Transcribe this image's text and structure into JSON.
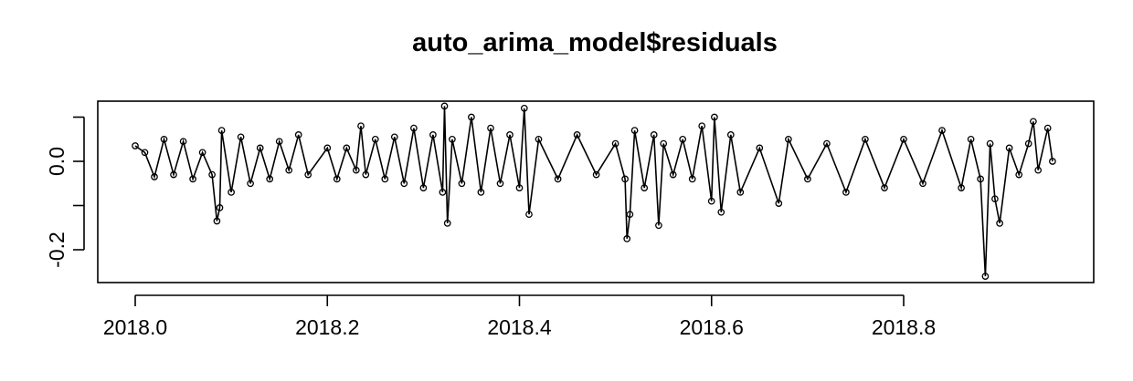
{
  "chart_data": {
    "type": "line",
    "title": "auto_arima_model$residuals",
    "xlabel": "",
    "ylabel": "",
    "xlim": [
      2018.0,
      2018.96
    ],
    "ylim": [
      -0.27,
      0.13
    ],
    "x_ticks": [
      2018.0,
      2018.2,
      2018.4,
      2018.6,
      2018.8
    ],
    "x_tick_labels": [
      "2018.0",
      "2018.2",
      "2018.4",
      "2018.6",
      "2018.8"
    ],
    "y_ticks": [
      -0.2,
      -0.1,
      0.0,
      0.1
    ],
    "y_tick_labels": [
      "-0.2",
      "",
      "0.0",
      ""
    ],
    "grid": false,
    "markers": "open-circle",
    "series": [
      {
        "color": "#000000",
        "points": [
          [
            2018.0,
            0.035
          ],
          [
            2018.01,
            0.02
          ],
          [
            2018.02,
            -0.035
          ],
          [
            2018.03,
            0.05
          ],
          [
            2018.04,
            -0.03
          ],
          [
            2018.05,
            0.045
          ],
          [
            2018.06,
            -0.04
          ],
          [
            2018.07,
            0.02
          ],
          [
            2018.08,
            -0.03
          ],
          [
            2018.085,
            -0.135
          ],
          [
            2018.088,
            -0.105
          ],
          [
            2018.09,
            0.07
          ],
          [
            2018.1,
            -0.07
          ],
          [
            2018.11,
            0.055
          ],
          [
            2018.12,
            -0.05
          ],
          [
            2018.13,
            0.03
          ],
          [
            2018.14,
            -0.04
          ],
          [
            2018.15,
            0.045
          ],
          [
            2018.16,
            -0.02
          ],
          [
            2018.17,
            0.06
          ],
          [
            2018.18,
            -0.03
          ],
          [
            2018.2,
            0.03
          ],
          [
            2018.21,
            -0.04
          ],
          [
            2018.22,
            0.03
          ],
          [
            2018.23,
            -0.02
          ],
          [
            2018.235,
            0.08
          ],
          [
            2018.24,
            -0.03
          ],
          [
            2018.25,
            0.05
          ],
          [
            2018.26,
            -0.04
          ],
          [
            2018.27,
            0.055
          ],
          [
            2018.28,
            -0.05
          ],
          [
            2018.29,
            0.075
          ],
          [
            2018.3,
            -0.06
          ],
          [
            2018.31,
            0.06
          ],
          [
            2018.32,
            -0.07
          ],
          [
            2018.322,
            0.125
          ],
          [
            2018.325,
            -0.14
          ],
          [
            2018.33,
            0.05
          ],
          [
            2018.34,
            -0.05
          ],
          [
            2018.35,
            0.1
          ],
          [
            2018.36,
            -0.07
          ],
          [
            2018.37,
            0.075
          ],
          [
            2018.38,
            -0.05
          ],
          [
            2018.39,
            0.06
          ],
          [
            2018.4,
            -0.06
          ],
          [
            2018.405,
            0.12
          ],
          [
            2018.41,
            -0.12
          ],
          [
            2018.42,
            0.05
          ],
          [
            2018.44,
            -0.04
          ],
          [
            2018.46,
            0.06
          ],
          [
            2018.48,
            -0.03
          ],
          [
            2018.5,
            0.04
          ],
          [
            2018.51,
            -0.04
          ],
          [
            2018.512,
            -0.175
          ],
          [
            2018.515,
            -0.12
          ],
          [
            2018.52,
            0.07
          ],
          [
            2018.53,
            -0.06
          ],
          [
            2018.54,
            0.06
          ],
          [
            2018.545,
            -0.145
          ],
          [
            2018.55,
            0.04
          ],
          [
            2018.56,
            -0.03
          ],
          [
            2018.57,
            0.05
          ],
          [
            2018.58,
            -0.04
          ],
          [
            2018.59,
            0.08
          ],
          [
            2018.6,
            -0.09
          ],
          [
            2018.603,
            0.1
          ],
          [
            2018.61,
            -0.115
          ],
          [
            2018.62,
            0.06
          ],
          [
            2018.63,
            -0.07
          ],
          [
            2018.65,
            0.03
          ],
          [
            2018.67,
            -0.095
          ],
          [
            2018.68,
            0.05
          ],
          [
            2018.7,
            -0.04
          ],
          [
            2018.72,
            0.04
          ],
          [
            2018.74,
            -0.07
          ],
          [
            2018.76,
            0.05
          ],
          [
            2018.78,
            -0.06
          ],
          [
            2018.8,
            0.05
          ],
          [
            2018.82,
            -0.05
          ],
          [
            2018.84,
            0.07
          ],
          [
            2018.86,
            -0.06
          ],
          [
            2018.87,
            0.05
          ],
          [
            2018.88,
            -0.04
          ],
          [
            2018.885,
            -0.26
          ],
          [
            2018.89,
            0.04
          ],
          [
            2018.895,
            -0.085
          ],
          [
            2018.9,
            -0.14
          ],
          [
            2018.91,
            0.03
          ],
          [
            2018.92,
            -0.03
          ],
          [
            2018.93,
            0.04
          ],
          [
            2018.935,
            0.09
          ],
          [
            2018.94,
            -0.02
          ],
          [
            2018.95,
            0.075
          ],
          [
            2018.955,
            0.0
          ]
        ]
      }
    ]
  }
}
